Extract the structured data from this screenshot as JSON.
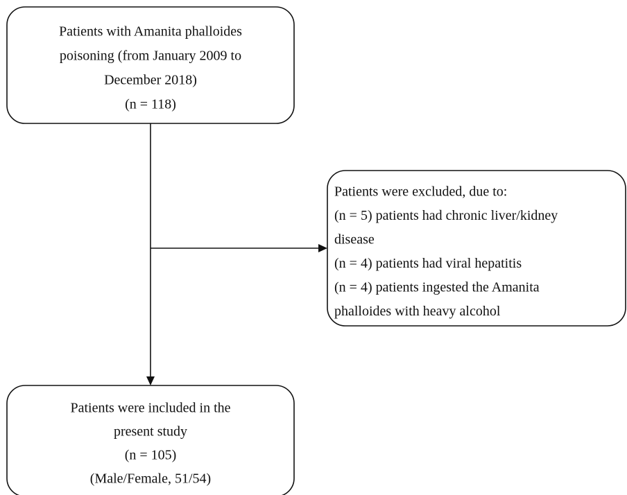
{
  "nodes": [
    {
      "lines": [
        "Patients with Amanita phalloides",
        "poisoning (from January 2009 to",
        "December 2018)",
        "(n = 118)"
      ]
    },
    {
      "lines": [
        "Patients were excluded, due to:",
        "(n = 5) patients had chronic liver/kidney",
        "disease",
        "(n = 4) patients had viral hepatitis",
        "(n = 4) patients ingested the Amanita",
        "phalloides with heavy alcohol"
      ]
    },
    {
      "lines": [
        "Patients were included in the",
        "present study",
        "(n = 105)",
        "(Male/Female, 51/54)"
      ]
    }
  ]
}
